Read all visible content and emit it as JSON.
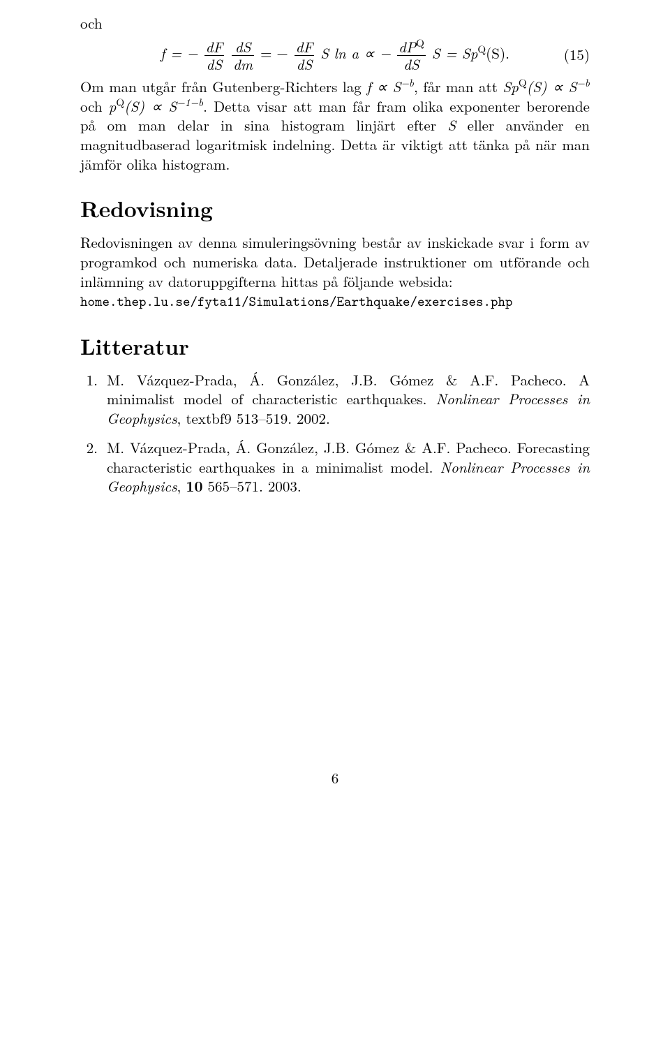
{
  "intro_word": "och",
  "equation": {
    "number": "(15)",
    "lhs_text": "f = −",
    "frac1_top": "dF",
    "frac1_bot": "dS",
    "frac2_top": "dS",
    "frac2_bot": "dm",
    "eq1": " = −",
    "frac3_top": "dF",
    "frac3_bot": "dS",
    "mid_text": "S ln a ∝ −",
    "frac4_top_pre": "dP",
    "frac4_top_sup": "Q",
    "frac4_bot": "dS",
    "rhs_text_pre": "S = Sp",
    "rhs_sup": "Q",
    "rhs_text_post": "(S)."
  },
  "para1": {
    "p1": "Om man utgår från Gutenberg-Richters lag ",
    "p2": "f ∝ S",
    "p2sup": "−b",
    "p3": ", får man att ",
    "p4": "Sp",
    "p4sup": "Q",
    "p5": "(S) ∝ S",
    "p5sup": "−b",
    "p6": " och ",
    "p7": "p",
    "p7sup": "Q",
    "p8": "(S) ∝ S",
    "p8sup": "−1−b",
    "p9": ". Detta visar att man får fram olika exponenter berorende på om man delar in sina histogram linjärt efter ",
    "p10": "S",
    "p11": " eller använder en magnitudbaserad logaritmisk indelning. Detta är viktigt att tänka på när man jämför olika histogram."
  },
  "sec_redovisning": "Redovisning",
  "para2": {
    "t1": "Redovisningen av denna simuleringsövning består av inskickade svar i form av programkod och numeriska data. Detaljerade instruktioner om utförande och inlämning av datoruppgifterna hittas på följande websida:",
    "code": "home.thep.lu.se/fyta11/Simulations/Earthquake/exercises.php"
  },
  "sec_litteratur": "Litteratur",
  "refs": [
    {
      "authors": "M. Vázquez-Prada, Á. González, J.B. Gómez & A.F. Pacheco. ",
      "title_plain": "A minimalist model of characteristic earthquakes. ",
      "journal": "Nonlinear Processes in Geophysics",
      "rest": ", textbf9 513–519. 2002."
    },
    {
      "authors": "M. Vázquez-Prada, Á. González, J.B. Gómez & A.F. Pacheco. ",
      "title_plain": "Forecasting characteristic earthquakes in a minimalist model. ",
      "journal": "Nonlinear Processes in Geophysics",
      "rest_pre": ", ",
      "vol": "10",
      "rest_post": " 565–571. 2003."
    }
  ],
  "page_number": "6"
}
